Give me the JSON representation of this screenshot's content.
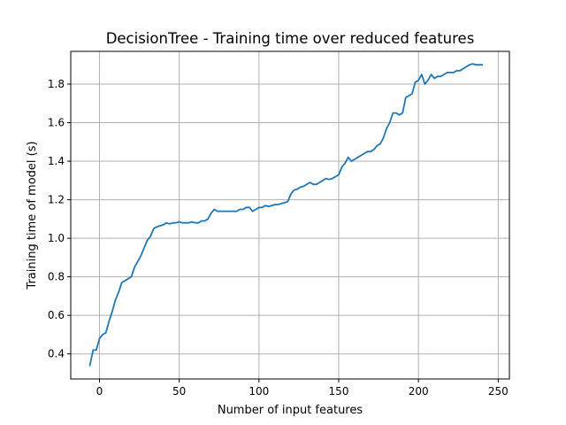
{
  "chart_data": {
    "type": "line",
    "title": "DecisionTree - Training time over reduced features",
    "xlabel": "Number of input features",
    "ylabel": "Training time of model (s)",
    "xlim": [
      -18,
      257
    ],
    "ylim": [
      0.27,
      1.97
    ],
    "x_ticks": [
      0,
      50,
      100,
      150,
      200,
      250
    ],
    "x_tick_labels": [
      "0",
      "50",
      "100",
      "150",
      "200",
      "250"
    ],
    "y_ticks": [
      0.4,
      0.6,
      0.8,
      1.0,
      1.2,
      1.4,
      1.6,
      1.8
    ],
    "y_tick_labels": [
      "0.4",
      "0.6",
      "0.8",
      "1.0",
      "1.2",
      "1.4",
      "1.6",
      "1.8"
    ],
    "grid": true,
    "line_color": "#1f77b4",
    "series": [
      {
        "x": [
          -6,
          -4,
          -2,
          0,
          2,
          4,
          6,
          8,
          10,
          12,
          14,
          16,
          18,
          20,
          22,
          24,
          26,
          28,
          30,
          32,
          34,
          36,
          38,
          40,
          42,
          44,
          46,
          48,
          50,
          52,
          54,
          56,
          58,
          60,
          62,
          64,
          66,
          68,
          70,
          72,
          74,
          76,
          78,
          80,
          82,
          84,
          86,
          88,
          90,
          92,
          94,
          96,
          98,
          100,
          102,
          104,
          106,
          108,
          110,
          112,
          114,
          116,
          118,
          120,
          122,
          124,
          126,
          128,
          130,
          132,
          134,
          136,
          138,
          140,
          142,
          144,
          146,
          148,
          150,
          152,
          154,
          156,
          158,
          160,
          162,
          164,
          166,
          168,
          170,
          172,
          174,
          176,
          178,
          180,
          182,
          184,
          186,
          188,
          190,
          192,
          194,
          196,
          198,
          200,
          202,
          204,
          206,
          208,
          210,
          212,
          214,
          216,
          218,
          220,
          222,
          224,
          226,
          228,
          230,
          232,
          234,
          236,
          238,
          240
        ],
        "values": [
          0.34,
          0.42,
          0.42,
          0.48,
          0.5,
          0.51,
          0.57,
          0.62,
          0.68,
          0.72,
          0.77,
          0.78,
          0.79,
          0.8,
          0.85,
          0.88,
          0.91,
          0.95,
          0.99,
          1.01,
          1.05,
          1.06,
          1.065,
          1.07,
          1.08,
          1.075,
          1.08,
          1.08,
          1.085,
          1.08,
          1.08,
          1.08,
          1.085,
          1.08,
          1.08,
          1.09,
          1.09,
          1.1,
          1.13,
          1.15,
          1.14,
          1.14,
          1.14,
          1.14,
          1.14,
          1.14,
          1.14,
          1.15,
          1.15,
          1.16,
          1.16,
          1.14,
          1.15,
          1.16,
          1.16,
          1.17,
          1.165,
          1.17,
          1.175,
          1.175,
          1.18,
          1.185,
          1.19,
          1.23,
          1.25,
          1.255,
          1.265,
          1.27,
          1.28,
          1.29,
          1.28,
          1.28,
          1.29,
          1.3,
          1.31,
          1.305,
          1.31,
          1.32,
          1.33,
          1.37,
          1.39,
          1.42,
          1.4,
          1.41,
          1.42,
          1.43,
          1.44,
          1.45,
          1.45,
          1.46,
          1.48,
          1.49,
          1.52,
          1.57,
          1.6,
          1.65,
          1.65,
          1.64,
          1.65,
          1.73,
          1.74,
          1.75,
          1.81,
          1.82,
          1.85,
          1.8,
          1.82,
          1.85,
          1.83,
          1.84,
          1.84,
          1.85,
          1.86,
          1.86,
          1.86,
          1.87,
          1.87,
          1.88,
          1.89,
          1.9,
          1.905,
          1.9,
          1.9,
          1.9
        ]
      }
    ]
  }
}
